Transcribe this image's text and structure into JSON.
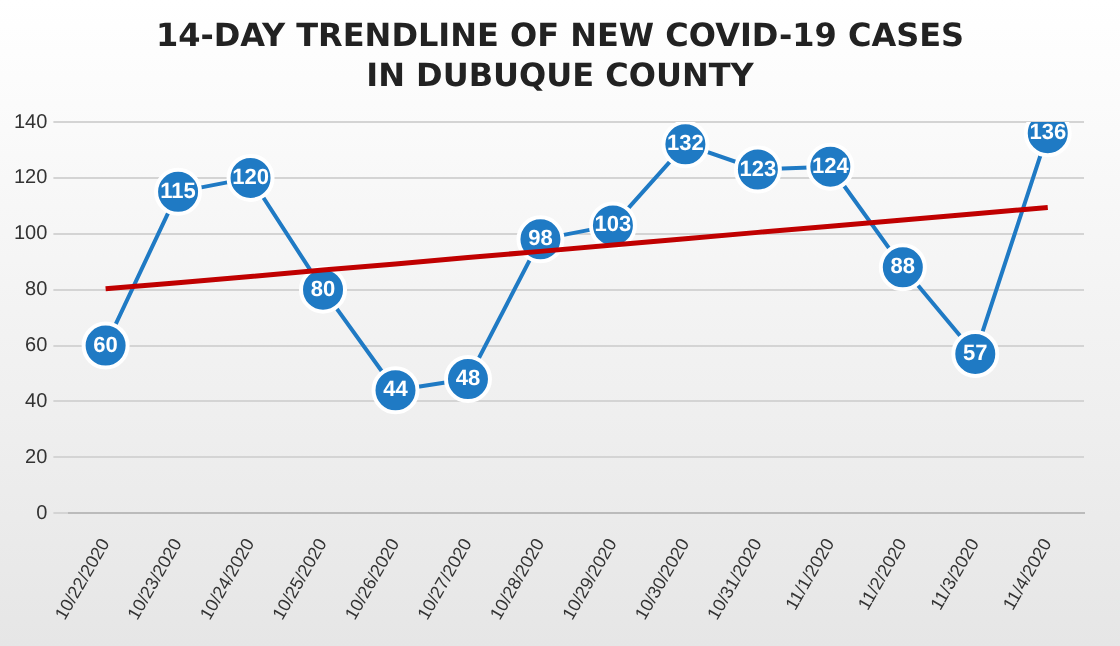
{
  "chart_data": {
    "type": "line",
    "title": "14-DAY TRENDLINE OF NEW COVID-19 CASES",
    "subtitle": "IN DUBUQUE COUNTY",
    "categories": [
      "10/22/2020",
      "10/23/2020",
      "10/24/2020",
      "10/25/2020",
      "10/26/2020",
      "10/27/2020",
      "10/28/2020",
      "10/29/2020",
      "10/30/2020",
      "10/31/2020",
      "11/1/2020",
      "11/2/2020",
      "11/3/2020",
      "11/4/2020"
    ],
    "series": [
      {
        "color": "#1f7ac4",
        "marker": "circle",
        "values": [
          60,
          115,
          120,
          80,
          44,
          48,
          98,
          103,
          132,
          123,
          124,
          88,
          57,
          136
        ],
        "value_labels": [
          "60",
          "115",
          "120",
          "80",
          "44",
          "48",
          "98",
          "103",
          "132",
          "123",
          "124",
          "88",
          "57",
          "136"
        ]
      },
      {
        "type": "line",
        "color": "#c00000",
        "marker": "none",
        "values": [
          80.3,
          82.5,
          84.7,
          87.0,
          89.2,
          91.5,
          93.7,
          96.0,
          98.2,
          100.5,
          102.7,
          104.9,
          107.2,
          109.4
        ]
      }
    ],
    "ylim": [
      0,
      140
    ],
    "yticks": [
      0,
      20,
      40,
      60,
      80,
      100,
      120,
      140
    ],
    "grid": "y",
    "legend": false
  }
}
